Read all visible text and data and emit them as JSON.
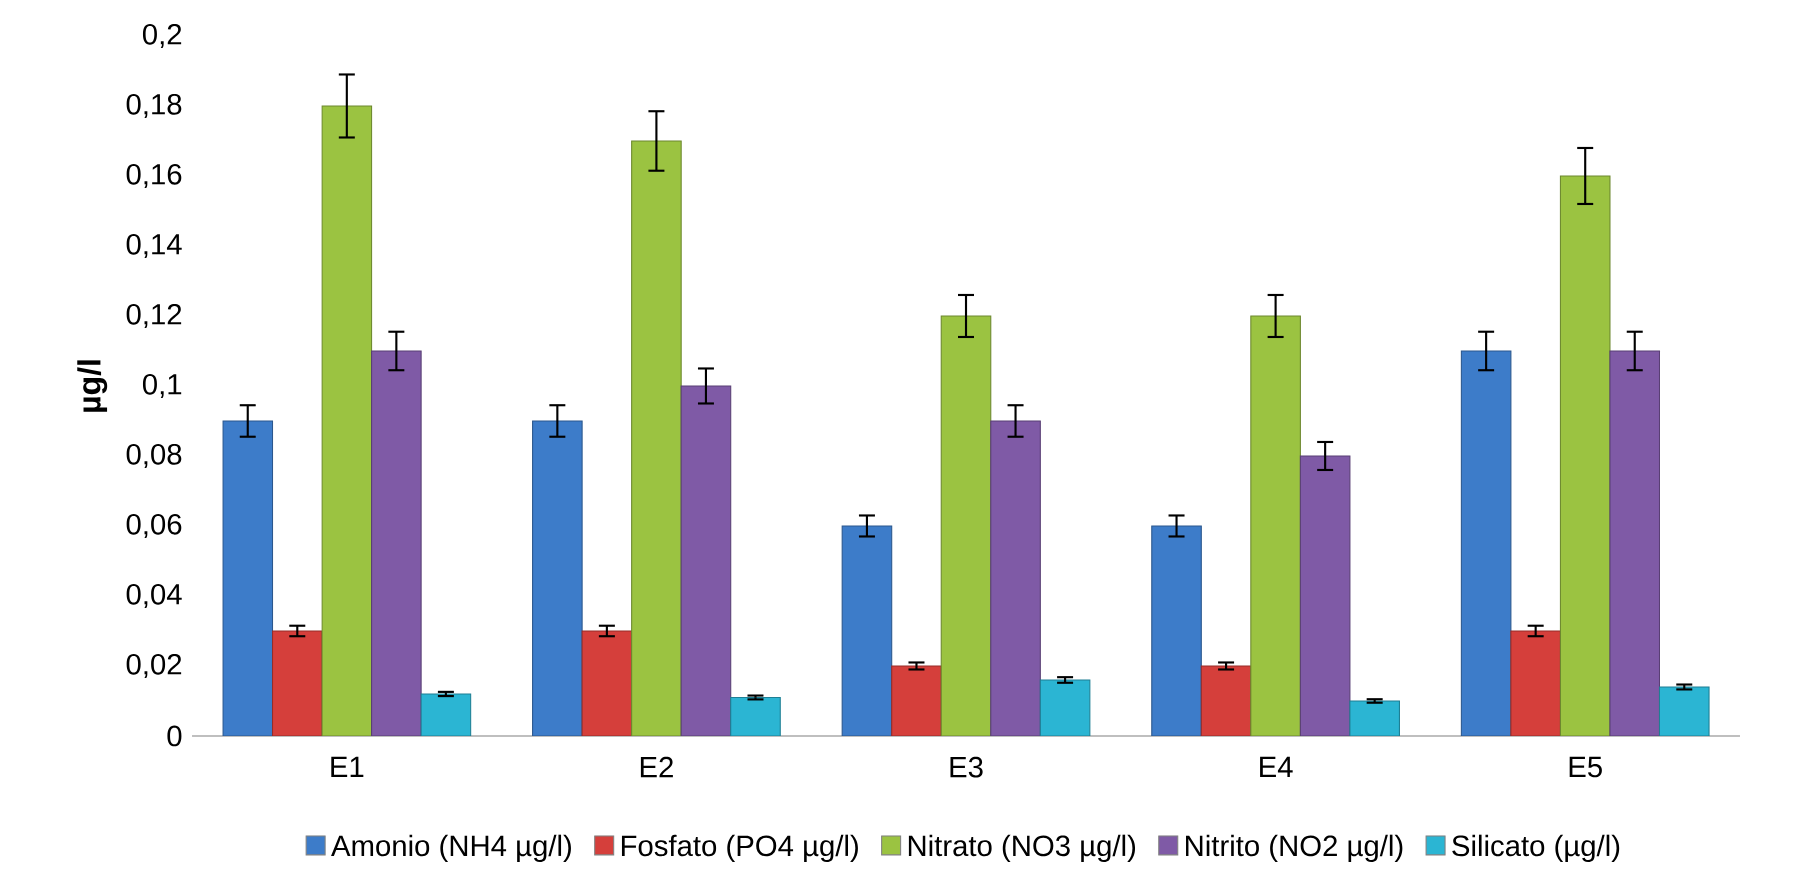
{
  "chart_data": {
    "type": "bar",
    "ylabel": "µg/l",
    "categories": [
      "E1",
      "E2",
      "E3",
      "E4",
      "E5"
    ],
    "series": [
      {
        "name": "Amonio (NH4 µg/l)",
        "color": "#3d7cc9",
        "values": [
          0.09,
          0.09,
          0.06,
          0.06,
          0.11
        ],
        "errors": [
          0.0045,
          0.0045,
          0.003,
          0.003,
          0.0055
        ]
      },
      {
        "name": "Fosfato (PO4 µg/l)",
        "color": "#d53f3b",
        "values": [
          0.03,
          0.03,
          0.02,
          0.02,
          0.03
        ],
        "errors": [
          0.0015,
          0.0015,
          0.001,
          0.001,
          0.0015
        ]
      },
      {
        "name": "Nitrato (NO3 µg/l)",
        "color": "#9bc341",
        "values": [
          0.18,
          0.17,
          0.12,
          0.12,
          0.16
        ],
        "errors": [
          0.009,
          0.0085,
          0.006,
          0.006,
          0.008
        ]
      },
      {
        "name": "Nitrito (NO2 µg/l)",
        "color": "#7f5aa6",
        "values": [
          0.11,
          0.1,
          0.09,
          0.08,
          0.11
        ],
        "errors": [
          0.0055,
          0.005,
          0.0045,
          0.004,
          0.0055
        ]
      },
      {
        "name": "Silicato (µg/l)",
        "color": "#2bb5d3",
        "values": [
          0.012,
          0.011,
          0.016,
          0.01,
          0.014
        ],
        "errors": [
          0.0006,
          0.00055,
          0.0008,
          0.0005,
          0.0007
        ]
      }
    ],
    "ylim": [
      0,
      0.2
    ],
    "yticks": [
      {
        "value": 0,
        "label": "0"
      },
      {
        "value": 0.02,
        "label": "0,02"
      },
      {
        "value": 0.04,
        "label": "0,04"
      },
      {
        "value": 0.06,
        "label": "0,06"
      },
      {
        "value": 0.08,
        "label": "0,08"
      },
      {
        "value": 0.1,
        "label": "0,1"
      },
      {
        "value": 0.12,
        "label": "0,12"
      },
      {
        "value": 0.14,
        "label": "0,14"
      },
      {
        "value": 0.16,
        "label": "0,16"
      },
      {
        "value": 0.18,
        "label": "0,18"
      },
      {
        "value": 0.2,
        "label": "0,2"
      }
    ],
    "grid": false,
    "legend": "bottom"
  }
}
